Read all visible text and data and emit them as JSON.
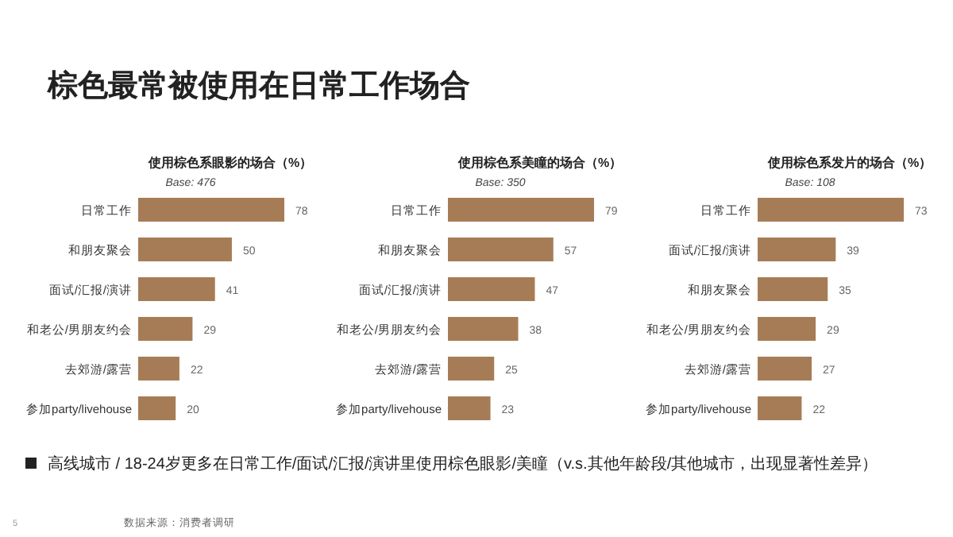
{
  "chart_data": [
    {
      "type": "bar",
      "orientation": "horizontal",
      "title": "使用棕色系眼影的场合（%）",
      "subtitle": "Base: 476",
      "categories": [
        "日常工作",
        "和朋友聚会",
        "面试/汇报/演讲",
        "和老公/男朋友约会",
        "去郊游/露营",
        "参加party/livehouse"
      ],
      "values": [
        78,
        50,
        41,
        29,
        22,
        20
      ],
      "color": "#a67c56",
      "data_labels": true,
      "annotations": [
        "棕色最常被使用在日常工作场合",
        "高线城市 / 18-24岁更多在日常工作/面试/汇报/演讲里使用棕色眼影/美瞳（v.s.其他年龄段/其他城市，出现显著性差异）",
        "5",
        "数据来源：消费者调研"
      ]
    },
    {
      "type": "bar",
      "orientation": "horizontal",
      "title": "使用棕色系美瞳的场合（%）",
      "subtitle": "Base: 350",
      "categories": [
        "日常工作",
        "和朋友聚会",
        "面试/汇报/演讲",
        "和老公/男朋友约会",
        "去郊游/露营",
        "参加party/livehouse"
      ],
      "values": [
        79,
        57,
        47,
        38,
        25,
        23
      ],
      "color": "#a67c56",
      "data_labels": true
    },
    {
      "type": "bar",
      "orientation": "horizontal",
      "title": "使用棕色系发片的场合（%）",
      "subtitle": "Base: 108",
      "categories": [
        "日常工作",
        "面试/汇报/演讲",
        "和朋友聚会",
        "和老公/男朋友约会",
        "去郊游/露营",
        "参加party/livehouse"
      ],
      "values": [
        73,
        39,
        35,
        29,
        27,
        22
      ],
      "color": "#a67c56",
      "data_labels": true
    }
  ]
}
